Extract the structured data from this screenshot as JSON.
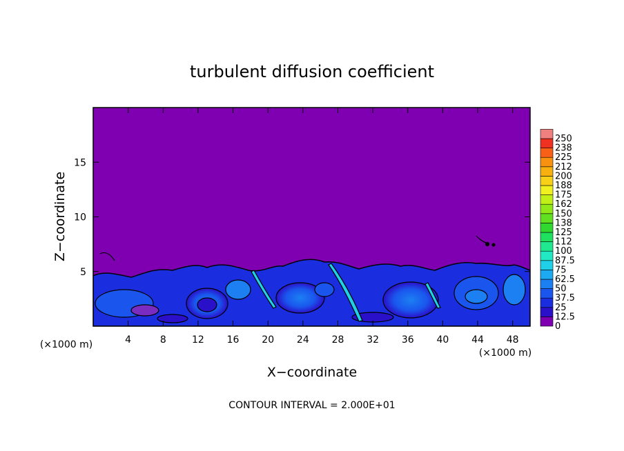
{
  "chart_data": {
    "type": "heatmap",
    "title": "turbulent diffusion coefficient",
    "xlabel": "X−coordinate",
    "ylabel": "Z−coordinate",
    "x_unit_left": "(×1000 m)",
    "x_unit_right": "(×1000 m)",
    "footer": "CONTOUR INTERVAL = 2.000E+01",
    "xlim": [
      0,
      50
    ],
    "ylim": [
      0,
      20
    ],
    "x_ticks": [
      4,
      8,
      12,
      16,
      20,
      24,
      28,
      32,
      36,
      40,
      44,
      48
    ],
    "y_ticks": [
      5,
      10,
      15
    ],
    "background_color": "#7f00b0",
    "turbulent_layer_top_z": 5.5,
    "colorbar": {
      "labels": [
        "0",
        "12.5",
        "25",
        "37.5",
        "50",
        "62.5",
        "75",
        "87.5",
        "100",
        "112",
        "125",
        "138",
        "150",
        "162",
        "175",
        "188",
        "200",
        "212",
        "225",
        "238",
        "250"
      ],
      "colors": [
        "#7f00b0",
        "#2a10c8",
        "#1a2ee0",
        "#1a56ee",
        "#1c80f2",
        "#1eaaf0",
        "#20d0e8",
        "#22e8c4",
        "#20e890",
        "#20e060",
        "#30d830",
        "#60e020",
        "#90e818",
        "#c0f018",
        "#f0f020",
        "#f8d018",
        "#f8b010",
        "#f89010",
        "#f86018",
        "#f03020",
        "#f08080"
      ]
    }
  }
}
